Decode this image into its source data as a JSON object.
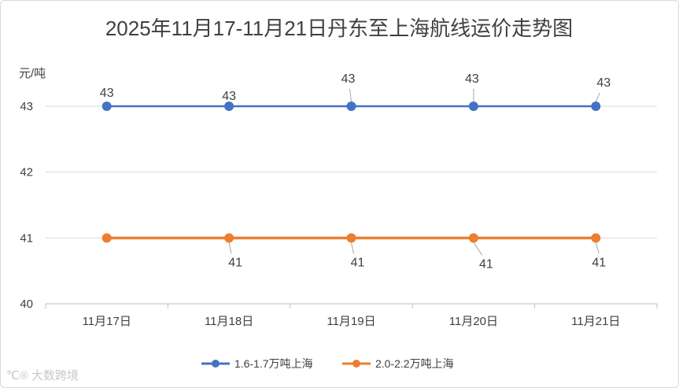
{
  "chart_data": {
    "type": "line",
    "title": "2025年11月17-11月21日丹东至上海航线运价走势图",
    "ylabel": "元/吨",
    "xlabel": "",
    "categories": [
      "11月17日",
      "11月18日",
      "11月19日",
      "11月20日",
      "11月21日"
    ],
    "ylim": [
      40,
      43
    ],
    "yticks": [
      "40",
      "41",
      "42",
      "43"
    ],
    "grid": true,
    "legend": "bottom",
    "series": [
      {
        "name": "1.6-1.7万吨上海",
        "color": "#4472C4",
        "values": [
          43,
          43,
          43,
          43,
          43
        ],
        "labels": [
          "43",
          "43",
          "43",
          "43",
          "43"
        ]
      },
      {
        "name": "2.0-2.2万吨上海",
        "color": "#ED7D31",
        "values": [
          41,
          41,
          41,
          41,
          41
        ],
        "labels": [
          "41",
          "41",
          "41",
          "41",
          "41"
        ]
      }
    ]
  },
  "watermark": {
    "text": "大数跨境"
  }
}
